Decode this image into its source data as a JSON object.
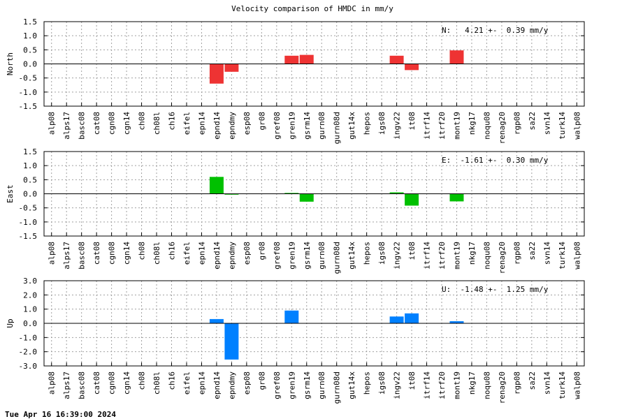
{
  "title": "Velocity comparison of HMDC in mm/y",
  "timestamp": "Tue Apr 16 16:39:00 2024",
  "chart_data": [
    {
      "type": "bar",
      "ylabel": "North",
      "ylim": [
        -1.5,
        1.5
      ],
      "yticks": [
        "-1.5",
        "-1.0",
        "-0.5",
        "0.0",
        "0.5",
        "1.0",
        "1.5"
      ],
      "color": "#ee3333",
      "annotation": "N:   4.21 +-  0.39 mm/y",
      "grid": true,
      "categories": [
        "alp08",
        "alps17",
        "basc08",
        "cat08",
        "cgn08",
        "cgn14",
        "ch08",
        "ch08l",
        "ch16",
        "eifel",
        "epn14",
        "epnd14",
        "epndmy",
        "esp08",
        "gr08",
        "gref08",
        "gren19",
        "gsrm14",
        "gurn08",
        "gurn08d",
        "gut14x",
        "hepos",
        "igs08",
        "ingv22",
        "it08",
        "itrf14",
        "itrf20",
        "mont19",
        "nkg17",
        "noqu08",
        "renag20",
        "rgp08",
        "sa22",
        "svn14",
        "turk14",
        "walp08"
      ],
      "values": [
        0,
        0,
        0,
        0,
        0,
        0,
        0,
        0,
        0,
        0,
        0,
        -0.7,
        -0.28,
        0,
        0,
        0,
        0.29,
        0.32,
        0,
        0,
        0,
        0,
        0,
        0.29,
        -0.22,
        0,
        0,
        0.48,
        0,
        0,
        0,
        0,
        0,
        0,
        0,
        0
      ]
    },
    {
      "type": "bar",
      "ylabel": "East",
      "ylim": [
        -1.5,
        1.5
      ],
      "yticks": [
        "-1.5",
        "-1.0",
        "-0.5",
        "0.0",
        "0.5",
        "1.0",
        "1.5"
      ],
      "color": "#00c000",
      "annotation": "E:  -1.61 +-  0.30 mm/y",
      "grid": true,
      "categories": [
        "alp08",
        "alps17",
        "basc08",
        "cat08",
        "cgn08",
        "cgn14",
        "ch08",
        "ch08l",
        "ch16",
        "eifel",
        "epn14",
        "epnd14",
        "epndmy",
        "esp08",
        "gr08",
        "gref08",
        "gren19",
        "gsrm14",
        "gurn08",
        "gurn08d",
        "gut14x",
        "hepos",
        "igs08",
        "ingv22",
        "it08",
        "itrf14",
        "itrf20",
        "mont19",
        "nkg17",
        "noqu08",
        "renag20",
        "rgp08",
        "sa22",
        "svn14",
        "turk14",
        "walp08"
      ],
      "values": [
        0,
        0,
        0,
        0,
        0,
        0,
        0,
        0,
        0,
        0,
        0,
        0.6,
        -0.03,
        0,
        0,
        0,
        0.03,
        -0.28,
        0,
        0,
        0,
        0,
        0,
        0.05,
        -0.42,
        0,
        0,
        -0.27,
        0,
        0,
        0,
        0,
        0,
        0,
        0,
        0
      ]
    },
    {
      "type": "bar",
      "ylabel": "Up",
      "ylim": [
        -3.0,
        3.0
      ],
      "yticks": [
        "-3.0",
        "-2.0",
        "-1.0",
        "0.0",
        "1.0",
        "2.0",
        "3.0"
      ],
      "color": "#0080ff",
      "annotation": "U:  -1.48 +-  1.25 mm/y",
      "grid": true,
      "categories": [
        "alp08",
        "alps17",
        "basc08",
        "cat08",
        "cgn08",
        "cgn14",
        "ch08",
        "ch08l",
        "ch16",
        "eifel",
        "epn14",
        "epnd14",
        "epndmy",
        "esp08",
        "gr08",
        "gref08",
        "gren19",
        "gsrm14",
        "gurn08",
        "gurn08d",
        "gut14x",
        "hepos",
        "igs08",
        "ingv22",
        "it08",
        "itrf14",
        "itrf20",
        "mont19",
        "nkg17",
        "noqu08",
        "renag20",
        "rgp08",
        "sa22",
        "svn14",
        "turk14",
        "walp08"
      ],
      "values": [
        0,
        0,
        0,
        0,
        0,
        0,
        0,
        0,
        0,
        0,
        0,
        0.3,
        -2.55,
        0,
        0,
        0,
        0.9,
        0,
        0,
        0,
        0,
        0,
        0,
        0.48,
        0.7,
        0,
        0,
        0.15,
        0,
        0,
        0,
        0,
        0,
        0,
        0,
        0
      ]
    }
  ]
}
